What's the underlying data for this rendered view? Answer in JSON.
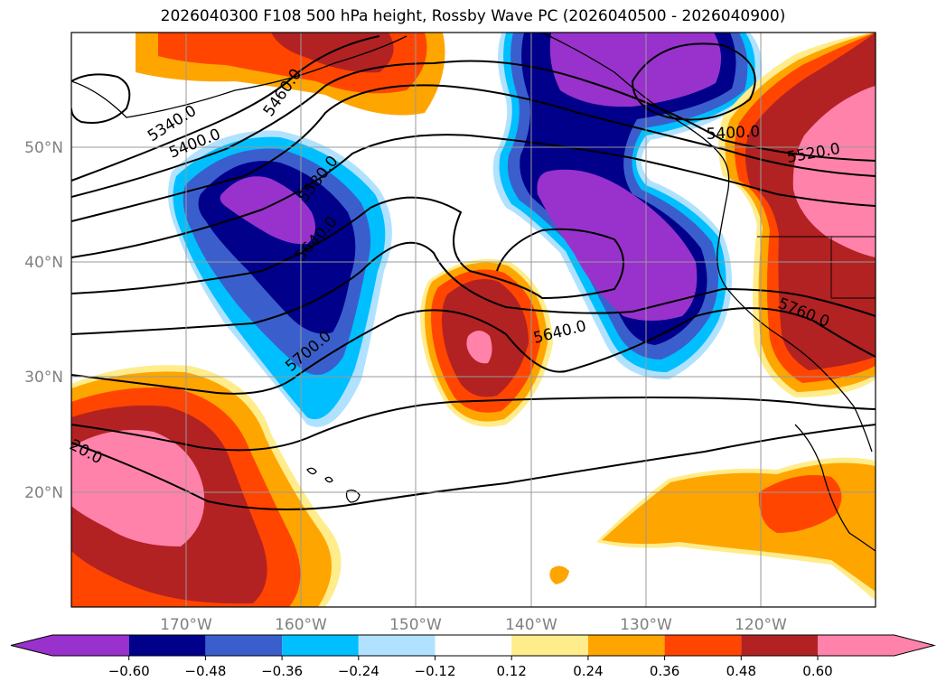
{
  "title": "2026040300 F108 500 hPa height, Rossby Wave PC (2026040500 - 2026040900)",
  "map": {
    "lon_range": [
      -180,
      -110
    ],
    "lat_range": [
      10,
      60
    ],
    "lat_labels": [
      {
        "lat": 50,
        "text": "50°N"
      },
      {
        "lat": 40,
        "text": "40°N"
      },
      {
        "lat": 30,
        "text": "30°N"
      },
      {
        "lat": 20,
        "text": "20°N"
      }
    ],
    "lon_labels": [
      {
        "lon": -170,
        "text": "170°W"
      },
      {
        "lon": -160,
        "text": "160°W"
      },
      {
        "lon": -150,
        "text": "150°W"
      },
      {
        "lon": -140,
        "text": "140°W"
      },
      {
        "lon": -130,
        "text": "130°W"
      },
      {
        "lon": -120,
        "text": "120°W"
      }
    ],
    "contour_labels": [
      "5340.0",
      "5400.0",
      "5460.0",
      "5580.0",
      "5640.0",
      "5700.0",
      "5640.0",
      "5400.0",
      "5520.0",
      "5760.0",
      "20.0"
    ],
    "features": [
      {
        "name": "negative-anomaly-gulf-of-alaska",
        "sign": "negative",
        "peak": -0.6
      },
      {
        "name": "negative-anomaly-north-pacific",
        "sign": "negative",
        "peak": -0.6
      },
      {
        "name": "negative-anomaly-west-coast-trough",
        "sign": "negative",
        "peak": -0.6
      },
      {
        "name": "positive-anomaly-central-pacific",
        "sign": "positive",
        "peak": 0.6
      },
      {
        "name": "positive-anomaly-subtropical-west",
        "sign": "positive",
        "peak": 0.6
      },
      {
        "name": "positive-anomaly-western-us",
        "sign": "positive",
        "peak": 0.6
      },
      {
        "name": "positive-anomaly-bering",
        "sign": "positive",
        "peak": 0.48
      }
    ]
  },
  "colorbar": {
    "levels": [
      -0.6,
      -0.48,
      -0.36,
      -0.24,
      -0.12,
      0.12,
      0.24,
      0.36,
      0.48,
      0.6
    ],
    "tick_labels": [
      "−0.60",
      "−0.48",
      "−0.36",
      "−0.24",
      "−0.12",
      "0.12",
      "0.24",
      "0.36",
      "0.48",
      "0.60"
    ],
    "colors": [
      "#9932cc",
      "#00008b",
      "#3a5fcd",
      "#00bfff",
      "#b0e2ff",
      "#ffffff",
      "#ffec8b",
      "#ffa500",
      "#ff4500",
      "#b22222",
      "#ff82ab"
    ]
  }
}
